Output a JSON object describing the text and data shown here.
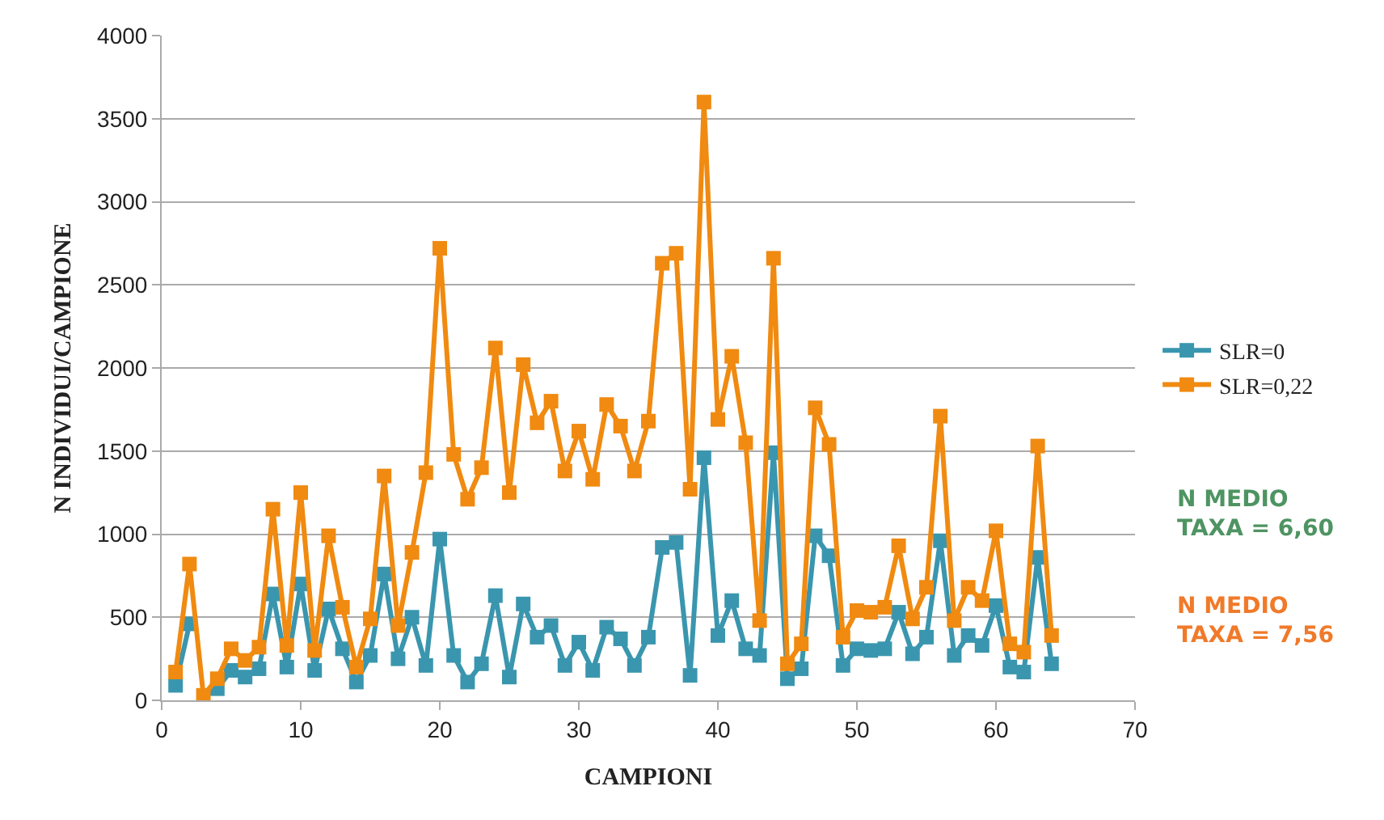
{
  "chart_data": {
    "type": "line",
    "xlabel": "CAMPIONI",
    "ylabel": "N INDIVIDUI/CAMPIONE",
    "x": [
      1,
      2,
      3,
      4,
      5,
      6,
      7,
      8,
      9,
      10,
      11,
      12,
      13,
      14,
      15,
      16,
      17,
      18,
      19,
      20,
      21,
      22,
      23,
      24,
      25,
      26,
      27,
      28,
      29,
      30,
      31,
      32,
      33,
      34,
      35,
      36,
      37,
      38,
      39,
      40,
      41,
      42,
      43,
      44,
      45,
      46,
      47,
      48,
      49,
      50,
      51,
      52,
      53,
      54,
      55,
      56,
      57,
      58,
      59,
      60,
      61,
      62,
      63,
      64
    ],
    "series": [
      {
        "name": "SLR=0",
        "color": "#3a96ae",
        "values": [
          90,
          460,
          null,
          70,
          180,
          140,
          190,
          640,
          200,
          700,
          180,
          550,
          310,
          110,
          270,
          760,
          250,
          500,
          210,
          970,
          270,
          110,
          220,
          630,
          140,
          580,
          380,
          450,
          210,
          350,
          180,
          440,
          370,
          210,
          380,
          920,
          950,
          150,
          1460,
          390,
          600,
          310,
          270,
          1490,
          130,
          190,
          990,
          870,
          210,
          310,
          300,
          310,
          530,
          280,
          380,
          960,
          270,
          390,
          330,
          570,
          200,
          170,
          860,
          220
        ]
      },
      {
        "name": "SLR=0,22",
        "color": "#f08a10",
        "values": [
          170,
          820,
          30,
          130,
          310,
          240,
          320,
          1150,
          330,
          1250,
          300,
          990,
          560,
          200,
          490,
          1350,
          450,
          890,
          1370,
          2720,
          1480,
          1210,
          1400,
          2120,
          1250,
          2020,
          1670,
          1800,
          1380,
          1620,
          1330,
          1780,
          1650,
          1380,
          1680,
          2630,
          2690,
          1270,
          3600,
          1690,
          2070,
          1550,
          480,
          2660,
          220,
          340,
          1760,
          1540,
          380,
          540,
          530,
          560,
          930,
          490,
          680,
          1710,
          480,
          680,
          600,
          1020,
          340,
          290,
          1530,
          390
        ]
      }
    ],
    "xlim": [
      0,
      70
    ],
    "xticks": [
      0,
      10,
      20,
      30,
      40,
      50,
      60,
      70
    ],
    "ylim": [
      0,
      4000
    ],
    "yticks": [
      0,
      500,
      1000,
      1500,
      2000,
      2500,
      3000,
      3500,
      4000
    ],
    "grid": "y",
    "legend": "right",
    "marker": "square",
    "line_style": "solid",
    "annotations": [
      "N MEDIO\nTAXA = 6,60",
      "N MEDIO\nTAXA = 7,56"
    ]
  }
}
